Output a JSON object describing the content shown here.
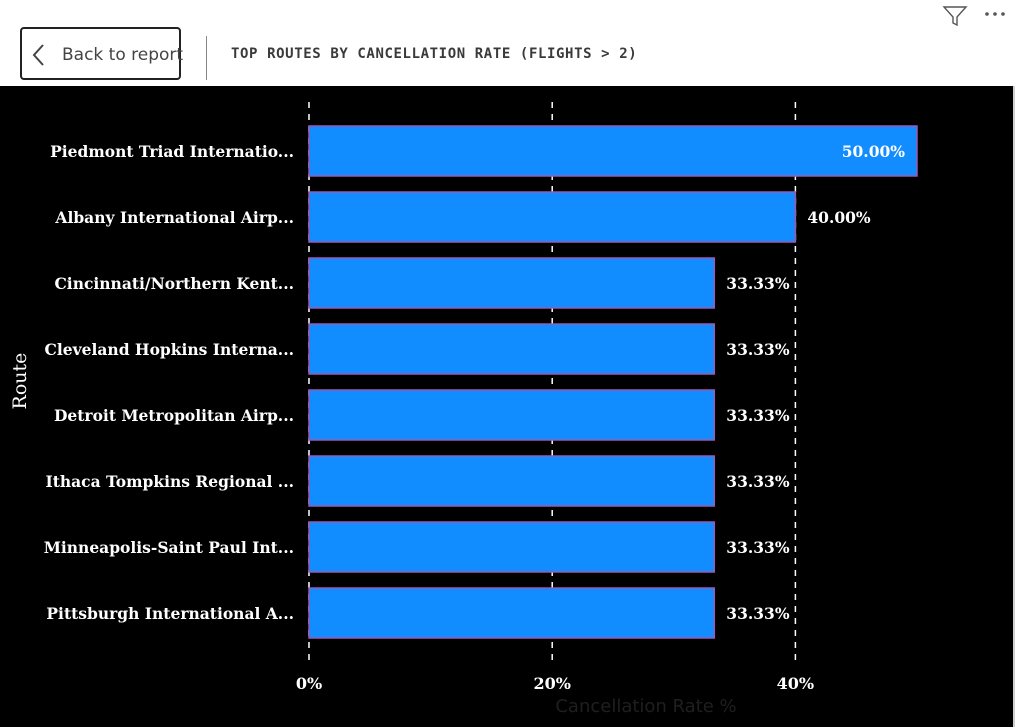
{
  "header": {
    "back_label": "Back to report",
    "title": "TOP ROUTES BY CANCELLATION RATE (FLIGHTS > 2)",
    "icons": [
      "chevron-left-icon",
      "filter-icon",
      "more-options-icon"
    ]
  },
  "colors": {
    "bar_fill": "#118DFF",
    "bar_stroke": "#9B59B6",
    "chart_background": "#000000",
    "label_text": "#FFFFFF",
    "gridline": "#FFFFFF"
  },
  "chart_data": {
    "type": "bar",
    "orientation": "horizontal",
    "title": "TOP ROUTES BY CANCELLATION RATE (FLIGHTS > 2)",
    "categories": [
      "Piedmont Triad Internatio...",
      "Albany International Airp...",
      "Cincinnati/Northern Kent...",
      "Cleveland Hopkins Interna...",
      "Detroit Metropolitan Airp...",
      "Ithaca Tompkins Regional ...",
      "Minneapolis-Saint Paul Int...",
      "Pittsburgh International A..."
    ],
    "values": [
      50.0,
      40.0,
      33.33,
      33.33,
      33.33,
      33.33,
      33.33,
      33.33
    ],
    "data_labels": [
      "50.00%",
      "40.00%",
      "33.33%",
      "33.33%",
      "33.33%",
      "33.33%",
      "33.33%",
      "33.33%"
    ],
    "xlabel": "Cancellation Rate %",
    "ylabel": "Route",
    "xlim": [
      0,
      50
    ],
    "xticks": [
      0,
      20,
      40
    ],
    "xtick_labels": [
      "0%",
      "20%",
      "40%"
    ],
    "grid": "vertical dashed"
  }
}
